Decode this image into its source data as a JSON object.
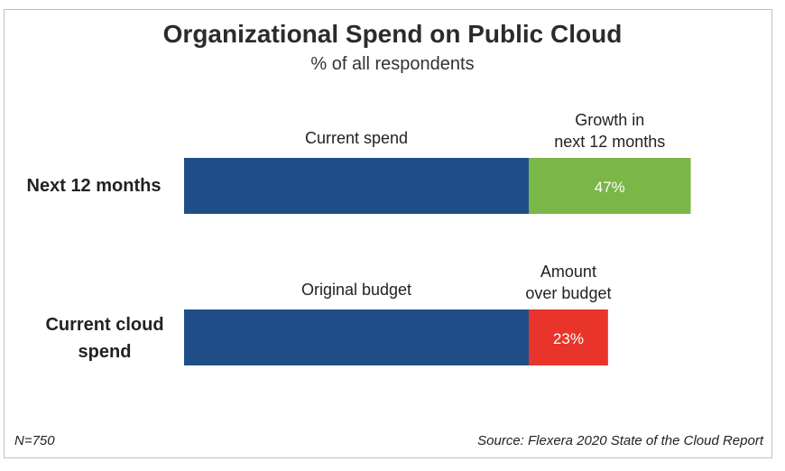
{
  "chart_data": {
    "type": "bar",
    "title": "Organizational Spend on Public Cloud",
    "subtitle": "% of all respondents",
    "categories": [
      "Next 12 months",
      "Current cloud spend"
    ],
    "rows": [
      {
        "category": "Next 12 months",
        "base_label": "Current spend",
        "base_value": 100,
        "extra_label": "Growth in next 12 months",
        "extra_label_lines": [
          "Growth in",
          "next 12 months"
        ],
        "extra_value": 47,
        "extra_value_text": "47%"
      },
      {
        "category": "Current cloud spend",
        "base_label": "Original budget",
        "base_value": 100,
        "extra_label": "Amount over budget",
        "extra_label_lines": [
          "Amount",
          "over budget"
        ],
        "extra_value": 23,
        "extra_value_text": "23%"
      }
    ],
    "colors": {
      "base": "#1f4e89",
      "growth": "#7ab648",
      "over_budget": "#e8342a"
    },
    "note": "N=750",
    "source": "Source: Flexera 2020 State of the Cloud Report"
  },
  "labels": {
    "row1": "Next 12 months",
    "row2_line1": "Current cloud",
    "row2_line2": "spend"
  }
}
